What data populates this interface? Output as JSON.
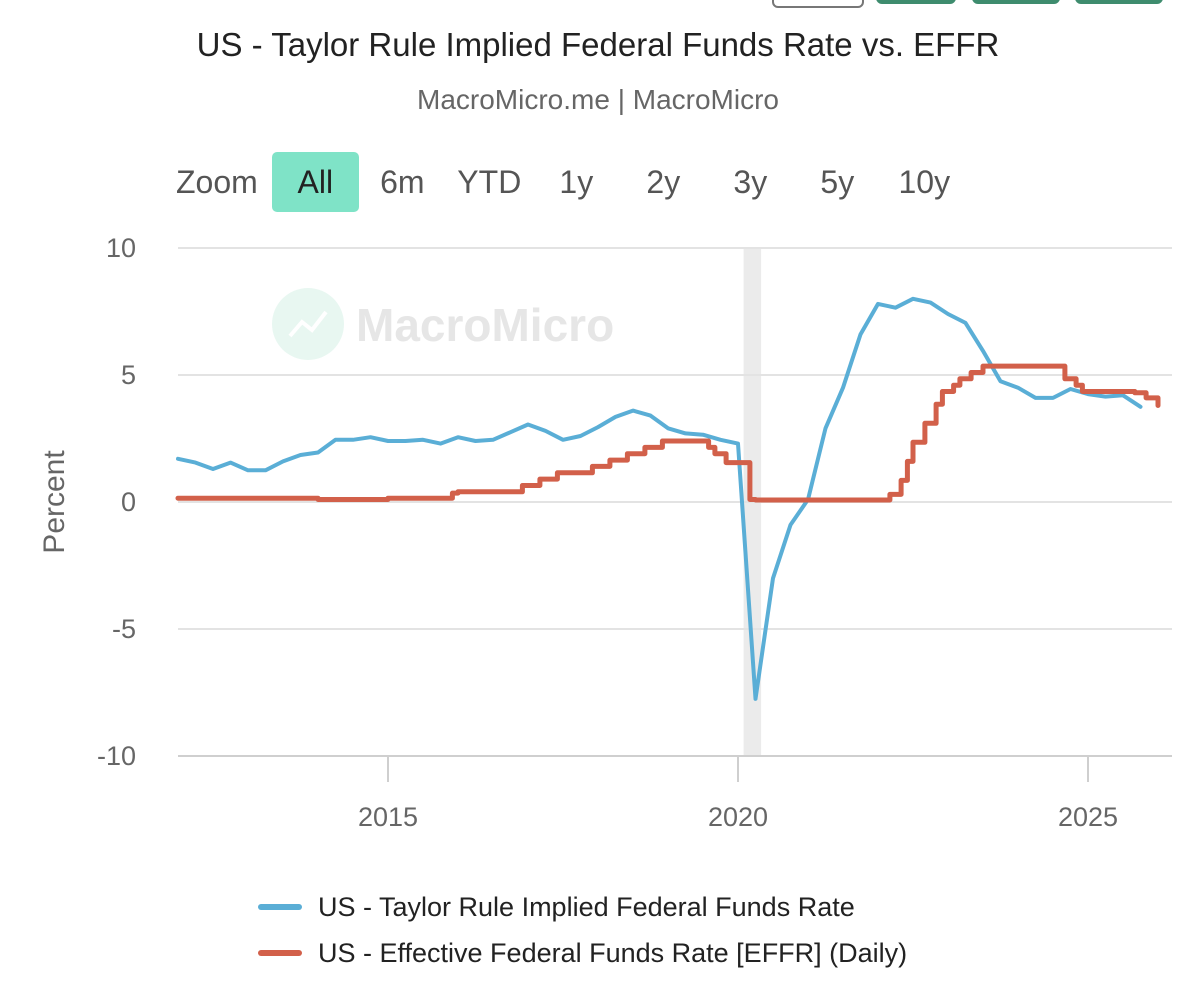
{
  "header": {
    "title": "US - Taylor Rule Implied Federal Funds Rate vs. EFFR",
    "subtitle": "MacroMicro.me | MacroMicro"
  },
  "range_selector": {
    "label": "Zoom",
    "buttons": [
      "All",
      "6m",
      "YTD",
      "1y",
      "2y",
      "3y",
      "5y",
      "10y"
    ],
    "active": "All"
  },
  "watermark": "MacroMicro",
  "colors": {
    "taylor": "#5aaed6",
    "effr": "#d2604a",
    "active_button": "#7fe3c7",
    "recession_band": "#ebebeb",
    "grid": "#e3e3e3"
  },
  "chart_data": {
    "type": "line",
    "title": "US - Taylor Rule Implied Federal Funds Rate vs. EFFR",
    "subtitle": "MacroMicro.me | MacroMicro",
    "ylabel": "Percent",
    "xlabel": "",
    "ylim": [
      -10,
      10
    ],
    "yticks": [
      10,
      5,
      0,
      -5,
      -10
    ],
    "xlim": [
      2012,
      2026.2
    ],
    "xticks": [
      2015,
      2020,
      2025
    ],
    "xtick_labels": [
      "2015",
      "2020",
      "2025"
    ],
    "recession_band": [
      2020.08,
      2020.33
    ],
    "legend_position": "bottom",
    "series": [
      {
        "name": "US - Taylor Rule Implied Federal Funds Rate",
        "color": "#5aaed6",
        "style": "smooth",
        "x": [
          2012.0,
          2012.25,
          2012.5,
          2012.75,
          2013.0,
          2013.25,
          2013.5,
          2013.75,
          2014.0,
          2014.25,
          2014.5,
          2014.75,
          2015.0,
          2015.25,
          2015.5,
          2015.75,
          2016.0,
          2016.25,
          2016.5,
          2016.75,
          2017.0,
          2017.25,
          2017.5,
          2017.75,
          2018.0,
          2018.25,
          2018.5,
          2018.75,
          2019.0,
          2019.25,
          2019.5,
          2019.75,
          2020.0,
          2020.25,
          2020.5,
          2020.75,
          2021.0,
          2021.25,
          2021.5,
          2021.75,
          2022.0,
          2022.25,
          2022.5,
          2022.75,
          2023.0,
          2023.25,
          2023.5,
          2023.75,
          2024.0,
          2024.25,
          2024.5,
          2024.75,
          2025.0,
          2025.25,
          2025.5,
          2025.75
        ],
        "values": [
          1.7,
          1.55,
          1.3,
          1.55,
          1.25,
          1.25,
          1.6,
          1.85,
          1.95,
          2.45,
          2.45,
          2.55,
          2.4,
          2.4,
          2.45,
          2.3,
          2.55,
          2.4,
          2.45,
          2.75,
          3.05,
          2.8,
          2.45,
          2.6,
          2.95,
          3.35,
          3.6,
          3.4,
          2.9,
          2.7,
          2.65,
          2.45,
          2.3,
          -7.75,
          -3.0,
          -0.9,
          0.1,
          2.9,
          4.5,
          6.6,
          7.8,
          7.65,
          8.0,
          7.85,
          7.4,
          7.05,
          5.95,
          4.75,
          4.5,
          4.1,
          4.1,
          4.45,
          4.25,
          4.15,
          4.2,
          3.75
        ]
      },
      {
        "name": "US - Effective Federal Funds Rate [EFFR] (Daily)",
        "color": "#d2604a",
        "style": "step",
        "x": [
          2012.0,
          2013.0,
          2014.0,
          2015.0,
          2015.92,
          2016.0,
          2016.92,
          2017.17,
          2017.42,
          2017.92,
          2018.17,
          2018.42,
          2018.67,
          2018.92,
          2019.58,
          2019.67,
          2019.83,
          2020.17,
          2020.25,
          2022.17,
          2022.33,
          2022.42,
          2022.5,
          2022.67,
          2022.83,
          2022.92,
          2023.08,
          2023.17,
          2023.33,
          2023.5,
          2024.67,
          2024.83,
          2024.92,
          2025.67,
          2025.83,
          2026.0
        ],
        "values": [
          0.15,
          0.15,
          0.1,
          0.15,
          0.35,
          0.4,
          0.65,
          0.9,
          1.15,
          1.4,
          1.65,
          1.9,
          2.15,
          2.4,
          2.15,
          1.9,
          1.55,
          0.1,
          0.08,
          0.3,
          0.85,
          1.6,
          2.35,
          3.1,
          3.85,
          4.35,
          4.6,
          4.85,
          5.1,
          5.35,
          4.85,
          4.6,
          4.35,
          4.3,
          4.1,
          3.8
        ]
      }
    ]
  },
  "legend": {
    "items": [
      {
        "label": "US - Taylor Rule Implied Federal Funds Rate",
        "color": "#5aaed6"
      },
      {
        "label": "US - Effective Federal Funds Rate [EFFR] (Daily)",
        "color": "#d2604a"
      }
    ]
  }
}
